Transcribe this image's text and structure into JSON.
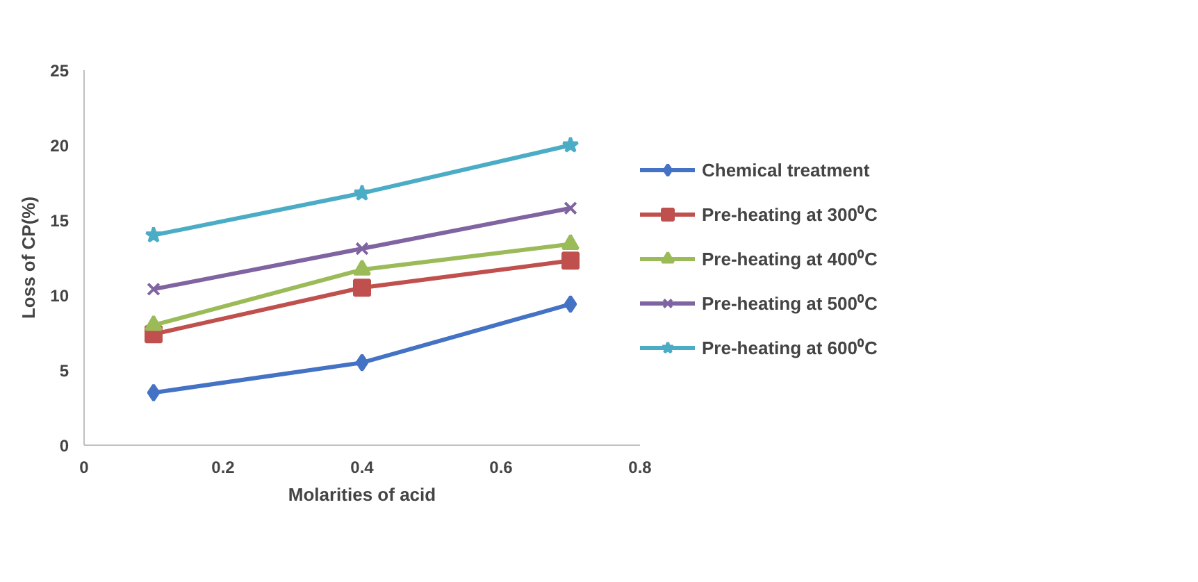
{
  "chart_data": {
    "type": "line",
    "xlabel": "Molarities of acid",
    "ylabel": "Loss of CP(%)",
    "x": [
      0.1,
      0.4,
      0.7
    ],
    "xlim": [
      0,
      0.8
    ],
    "xticks": [
      0,
      0.2,
      0.4,
      0.6,
      0.8
    ],
    "ylim": [
      0,
      25
    ],
    "yticks": [
      0,
      5,
      10,
      15,
      20,
      25
    ],
    "grid": false,
    "legend": "right",
    "line_style": "solid",
    "series": [
      {
        "name": "Chemical treatment",
        "color": "#4472c4",
        "marker": "diamond",
        "values": [
          3.5,
          5.5,
          9.4
        ]
      },
      {
        "name": "Pre-heating at 300⁰C",
        "color": "#c0504d",
        "marker": "square",
        "values": [
          7.4,
          10.5,
          12.3
        ]
      },
      {
        "name": "Pre-heating at 400⁰C",
        "color": "#9bbb59",
        "marker": "triangle",
        "values": [
          8.0,
          11.7,
          13.4
        ]
      },
      {
        "name": "Pre-heating at 500⁰C",
        "color": "#8064a2",
        "marker": "cross",
        "values": [
          10.4,
          13.1,
          15.8
        ]
      },
      {
        "name": "Pre-heating at 600⁰C",
        "color": "#4bacc6",
        "marker": "star",
        "values": [
          14.0,
          16.8,
          20.0
        ]
      }
    ]
  }
}
